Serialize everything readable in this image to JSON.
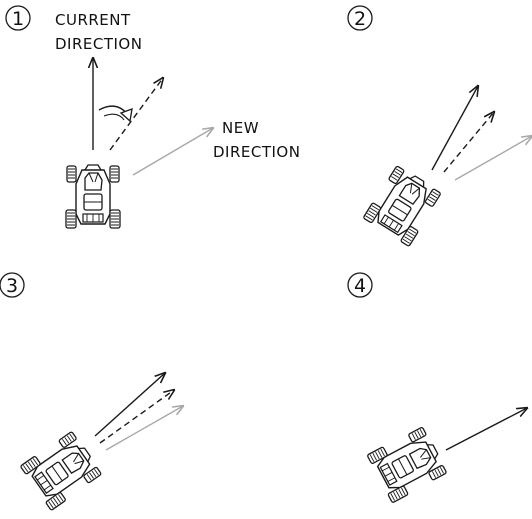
{
  "panels": [
    {
      "number": "1"
    },
    {
      "number": "2"
    },
    {
      "number": "3"
    },
    {
      "number": "4"
    }
  ],
  "labels": {
    "current_direction": [
      "CURRENT",
      "DIRECTION"
    ],
    "new_direction": [
      "NEW",
      "DIRECTION"
    ]
  },
  "colors": {
    "ink": "#1a1a1a",
    "new_direction_arrow": "#a8a8a8",
    "background": "#ffffff"
  },
  "icons": {
    "vehicle": "go-kart-icon",
    "turn": "curved-turn-arrow-icon"
  }
}
